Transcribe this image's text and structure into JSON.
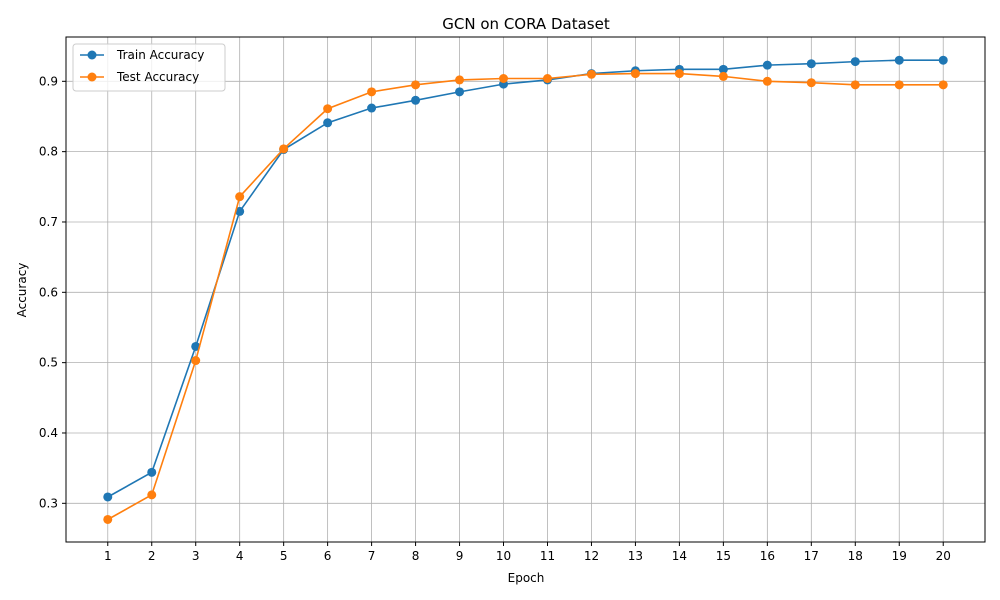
{
  "chart_data": {
    "type": "line",
    "title": "GCN on CORA Dataset",
    "xlabel": "Epoch",
    "ylabel": "Accuracy",
    "x": [
      1,
      2,
      3,
      4,
      5,
      6,
      7,
      8,
      9,
      10,
      11,
      12,
      13,
      14,
      15,
      16,
      17,
      18,
      19,
      20
    ],
    "xticks": [
      "1",
      "2",
      "3",
      "4",
      "5",
      "6",
      "7",
      "8",
      "9",
      "10",
      "11",
      "12",
      "13",
      "14",
      "15",
      "16",
      "17",
      "18",
      "19",
      "20"
    ],
    "xlim": [
      0.05,
      20.95
    ],
    "ylim": [
      0.245,
      0.963
    ],
    "yticks": [
      "0.3",
      "0.4",
      "0.5",
      "0.6",
      "0.7",
      "0.8",
      "0.9"
    ],
    "grid": true,
    "legend_position": "top-left",
    "series": [
      {
        "name": "Train Accuracy",
        "color": "#1f77b4",
        "marker": "circle",
        "values": [
          0.309,
          0.344,
          0.523,
          0.715,
          0.803,
          0.841,
          0.862,
          0.873,
          0.885,
          0.896,
          0.902,
          0.911,
          0.915,
          0.917,
          0.917,
          0.923,
          0.925,
          0.928,
          0.93,
          0.93
        ]
      },
      {
        "name": "Test Accuracy",
        "color": "#ff7f0e",
        "marker": "circle",
        "values": [
          0.277,
          0.312,
          0.503,
          0.736,
          0.804,
          0.861,
          0.885,
          0.895,
          0.902,
          0.904,
          0.904,
          0.91,
          0.911,
          0.911,
          0.907,
          0.9,
          0.898,
          0.895,
          0.895,
          0.895
        ]
      }
    ]
  }
}
